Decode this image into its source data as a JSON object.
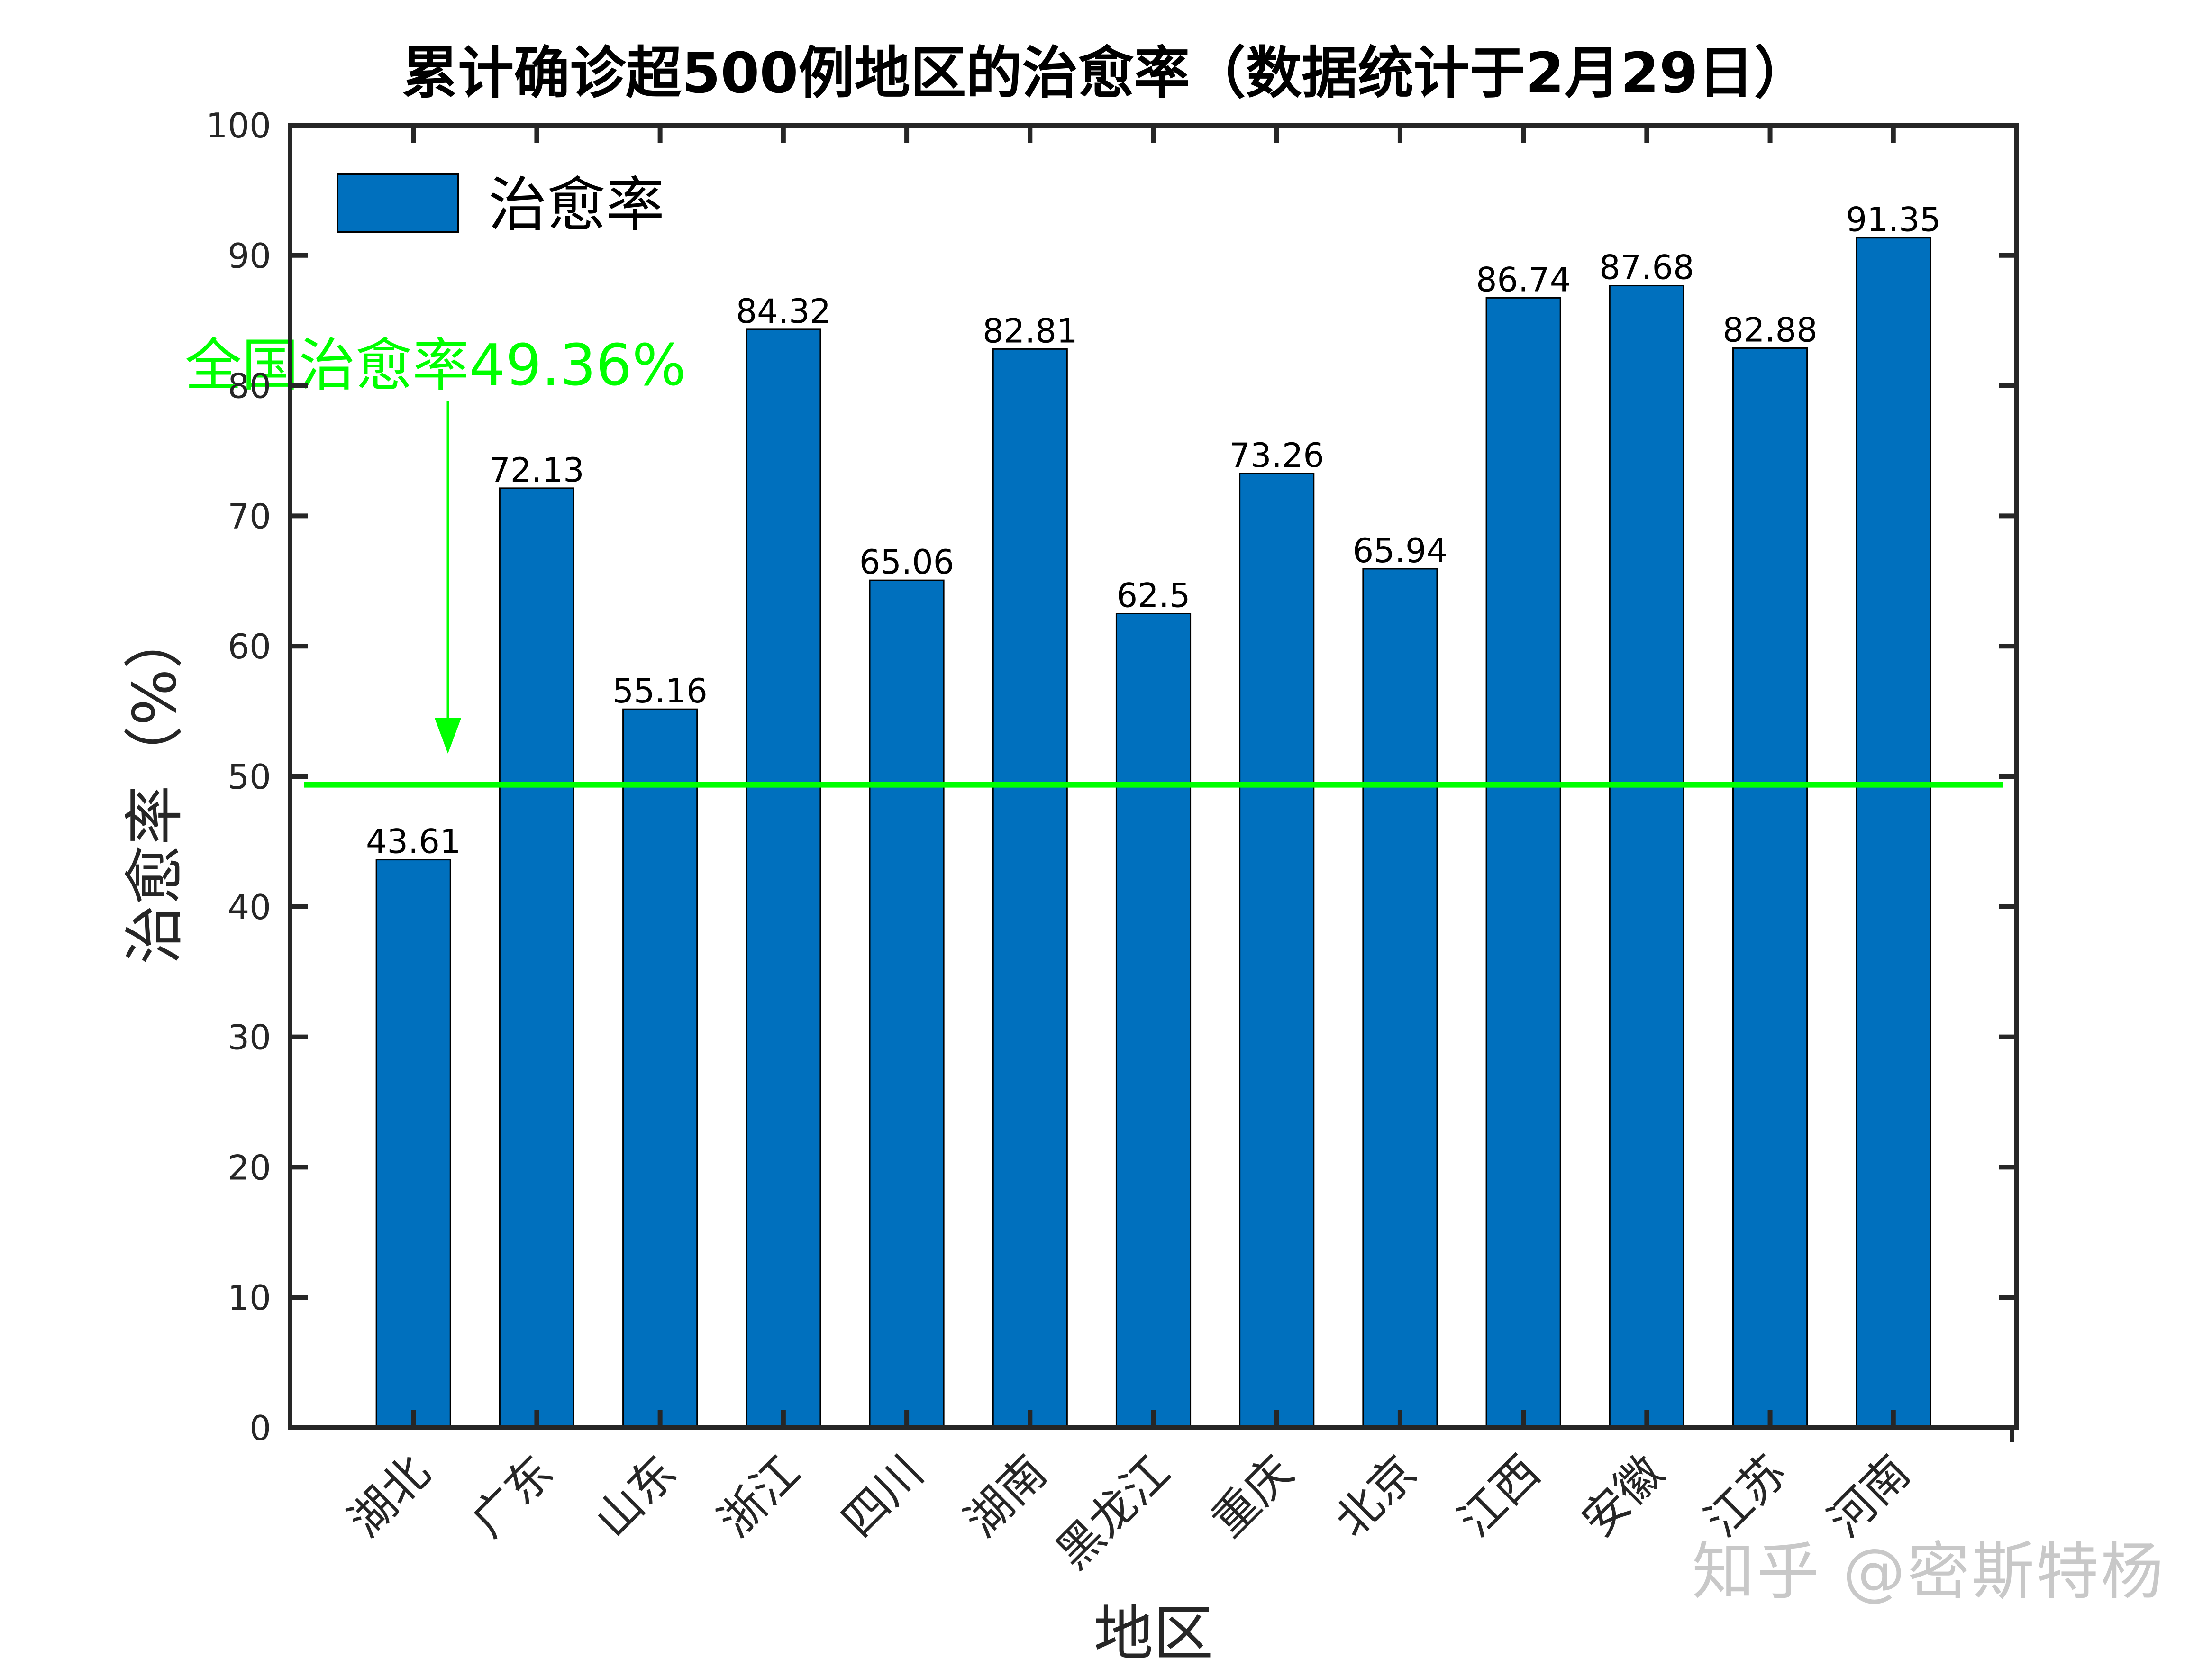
{
  "chart_data": {
    "type": "bar",
    "title": "累计确诊超500例地区的治愈率（数据统计于2月29日）",
    "xlabel": "地区",
    "ylabel": "治愈率（%）",
    "ylim": [
      0,
      100
    ],
    "yticks": [
      0,
      10,
      20,
      30,
      40,
      50,
      60,
      70,
      80,
      90,
      100
    ],
    "categories": [
      "湖北",
      "广东",
      "山东",
      "浙江",
      "四川",
      "湖南",
      "黑龙江",
      "重庆",
      "北京",
      "江西",
      "安徽",
      "江苏",
      "河南"
    ],
    "series": [
      {
        "name": "治愈率",
        "values": [
          43.61,
          72.13,
          55.16,
          84.32,
          65.06,
          82.81,
          62.5,
          73.26,
          65.94,
          86.74,
          87.68,
          82.88,
          91.35
        ],
        "labels": [
          "43.61",
          "72.13",
          "55.16",
          "84.32",
          "65.06",
          "82.81",
          "62.5",
          "73.26",
          "65.94",
          "86.74",
          "87.68",
          "82.88",
          "91.35"
        ]
      }
    ],
    "reference_line": {
      "value": 49.36,
      "label": "全国治愈率49.36%"
    },
    "legend": {
      "position": "top-left",
      "entries": [
        "治愈率"
      ]
    },
    "grid": false
  },
  "colors": {
    "bar": "#0070BE",
    "reference": "#00FF00",
    "axis": "#262626",
    "watermark": "#c8c8c8"
  },
  "watermark": "知乎 @密斯特杨"
}
